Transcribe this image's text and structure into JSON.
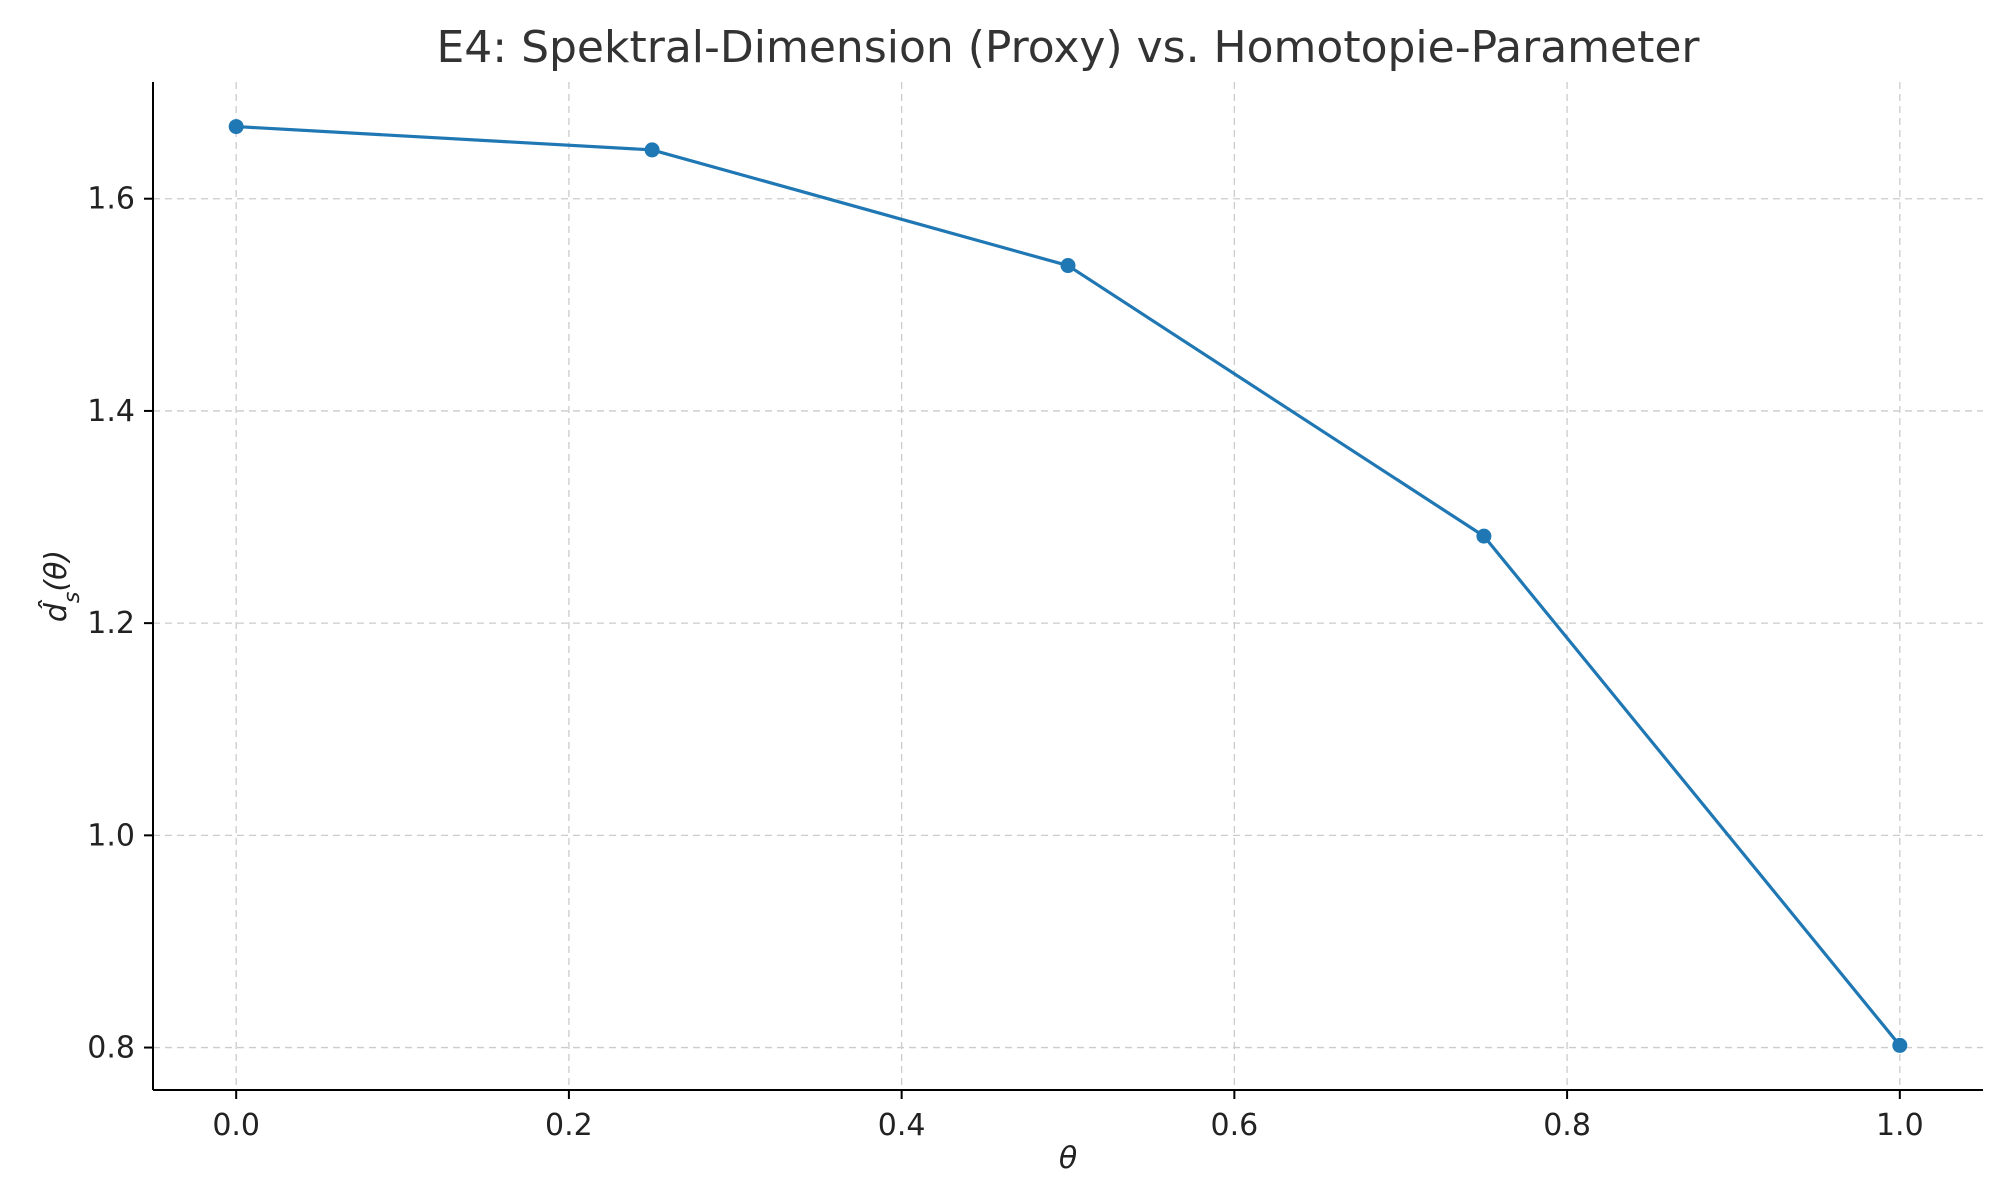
{
  "chart_data": {
    "type": "line",
    "title": "E4: Spektral-Dimension (Proxy) vs. Homotopie-Parameter",
    "xlabel": "θ",
    "ylabel": "d̂s(θ)",
    "ylabel_parts": {
      "base": "d̂",
      "subscript": "s",
      "argument": "(θ)"
    },
    "xlim": [
      -0.05,
      1.05
    ],
    "ylim": [
      0.76,
      1.71
    ],
    "xticks": [
      0.0,
      0.2,
      0.4,
      0.6,
      0.8,
      1.0
    ],
    "yticks": [
      0.8,
      1.0,
      1.2,
      1.4,
      1.6
    ],
    "xtick_labels": [
      "0.0",
      "0.2",
      "0.4",
      "0.6",
      "0.8",
      "1.0"
    ],
    "ytick_labels": [
      "0.8",
      "1.0",
      "1.2",
      "1.4",
      "1.6"
    ],
    "grid": true,
    "series": [
      {
        "x": [
          0.0,
          0.25,
          0.5,
          0.75,
          1.0
        ],
        "y": [
          1.668,
          1.646,
          1.537,
          1.282,
          0.802
        ],
        "color": "#1f77b4",
        "marker": "circle"
      }
    ]
  }
}
